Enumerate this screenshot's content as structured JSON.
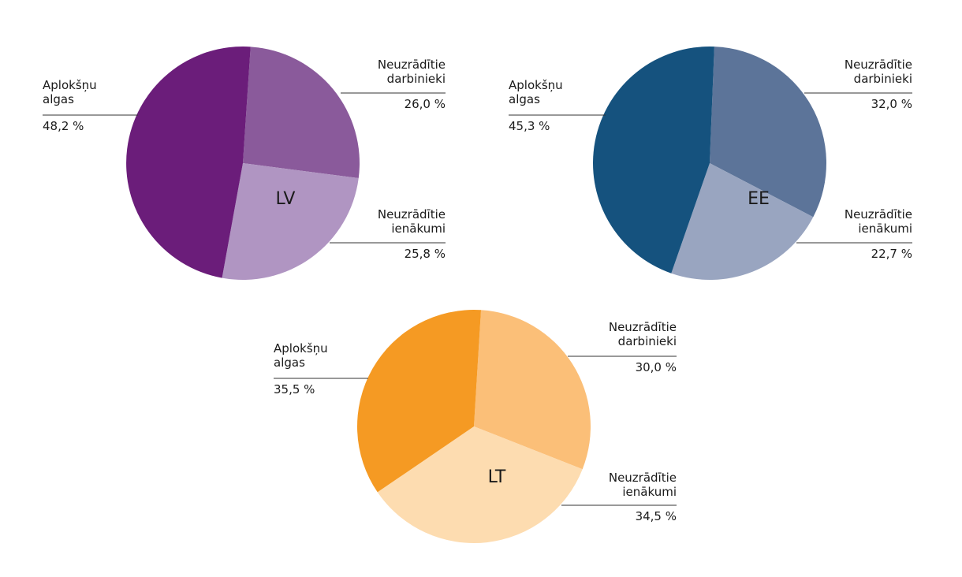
{
  "chart_data": [
    {
      "type": "pie",
      "center_label": "LV",
      "colors": [
        "#6b1d7a",
        "#8a5a9b",
        "#b095c2"
      ],
      "slices": [
        {
          "label_lines": [
            "Aplokšņu",
            "algas"
          ],
          "value": 48.2,
          "value_text": "48,2 %"
        },
        {
          "label_lines": [
            "Neuzrādītie",
            "darbinieki"
          ],
          "value": 26.0,
          "value_text": "26,0 %"
        },
        {
          "label_lines": [
            "Neuzrādītie",
            "ienākumi"
          ],
          "value": 25.8,
          "value_text": "25,8 %"
        }
      ]
    },
    {
      "type": "pie",
      "center_label": "EE",
      "colors": [
        "#15527e",
        "#5c7499",
        "#99a5c0"
      ],
      "slices": [
        {
          "label_lines": [
            "Aplokšņu",
            "algas"
          ],
          "value": 45.3,
          "value_text": "45,3 %"
        },
        {
          "label_lines": [
            "Neuzrādītie",
            "darbinieki"
          ],
          "value": 32.0,
          "value_text": "32,0 %"
        },
        {
          "label_lines": [
            "Neuzrādītie",
            "ienākumi"
          ],
          "value": 22.7,
          "value_text": "22,7 %"
        }
      ]
    },
    {
      "type": "pie",
      "center_label": "LT",
      "colors": [
        "#f59a23",
        "#fbbf78",
        "#fddcb0"
      ],
      "slices": [
        {
          "label_lines": [
            "Aplokšņu",
            "algas"
          ],
          "value": 35.5,
          "value_text": "35,5 %"
        },
        {
          "label_lines": [
            "Neuzrādītie",
            "darbinieki"
          ],
          "value": 30.0,
          "value_text": "30,0 %"
        },
        {
          "label_lines": [
            "Neuzrādītie",
            "ienākumi"
          ],
          "value": 34.5,
          "value_text": "34,5 %"
        }
      ]
    }
  ]
}
